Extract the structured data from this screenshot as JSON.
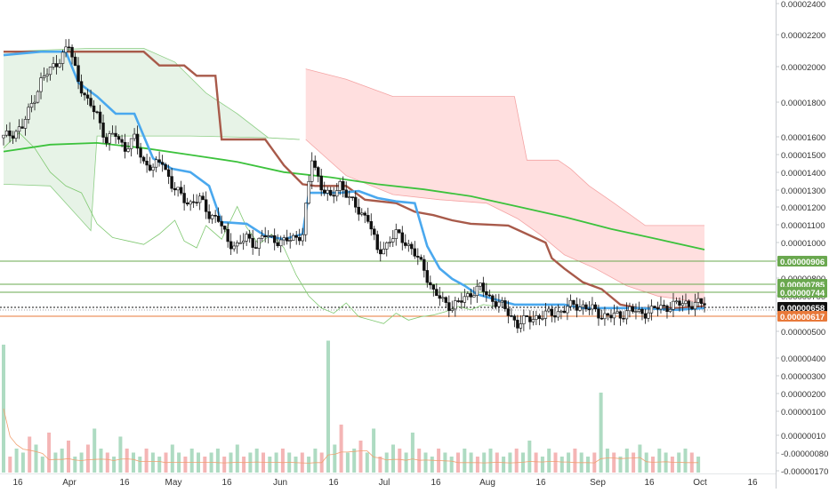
{
  "chart_data": {
    "type": "candlestick",
    "title": "",
    "x_ticks": [
      "16",
      "Apr",
      "16",
      "May",
      "16",
      "Jun",
      "16",
      "Jul",
      "16",
      "Aug",
      "16",
      "Sep",
      "16",
      "Oct",
      "16"
    ],
    "y_ticks": [
      "0.00002400",
      "0.00002200",
      "0.00002000",
      "0.00001800",
      "0.00001600",
      "0.00001500",
      "0.00001400",
      "0.00001300",
      "0.00001200",
      "0.00001100",
      "0.00001000",
      "0.00000900",
      "0.00000800",
      "0.00000700",
      "0.00000600",
      "0.00000500",
      "0.00000400",
      "0.00000300",
      "0.00000200",
      "0.00000100",
      "0.00000010",
      "-0.00000080",
      "-0.00000170"
    ],
    "price_levels": [
      {
        "label": "0.00000906",
        "color": "#6aa84f"
      },
      {
        "label": "0.00000785",
        "color": "#6aa84f"
      },
      {
        "label": "0.00000744",
        "color": "#6aa84f"
      },
      {
        "label": "0.00000658",
        "color": "#111111"
      },
      {
        "label": "0.00000617",
        "color": "#e8793a"
      }
    ],
    "price_series": [
      {
        "x": 0,
        "y": 16.2
      },
      {
        "x": 6,
        "y": 16.8
      },
      {
        "x": 12,
        "y": 19.5
      },
      {
        "x": 18,
        "y": 20.8
      },
      {
        "x": 21,
        "y": 21.5
      },
      {
        "x": 24,
        "y": 19.6
      },
      {
        "x": 27,
        "y": 18.2
      },
      {
        "x": 30,
        "y": 17.6
      },
      {
        "x": 33,
        "y": 16.0
      },
      {
        "x": 36,
        "y": 16.4
      },
      {
        "x": 39,
        "y": 15.6
      },
      {
        "x": 42,
        "y": 16.1
      },
      {
        "x": 45,
        "y": 14.8
      },
      {
        "x": 48,
        "y": 14.4
      },
      {
        "x": 51,
        "y": 14.9
      },
      {
        "x": 54,
        "y": 13.4
      },
      {
        "x": 57,
        "y": 12.8
      },
      {
        "x": 60,
        "y": 12.4
      },
      {
        "x": 63,
        "y": 12.6
      },
      {
        "x": 66,
        "y": 11.8
      },
      {
        "x": 69,
        "y": 11.4
      },
      {
        "x": 72,
        "y": 10.2
      },
      {
        "x": 75,
        "y": 9.9
      },
      {
        "x": 78,
        "y": 10.4
      },
      {
        "x": 81,
        "y": 10.0
      },
      {
        "x": 84,
        "y": 10.5
      },
      {
        "x": 87,
        "y": 10.3
      },
      {
        "x": 90,
        "y": 10.1
      },
      {
        "x": 93,
        "y": 10.4
      },
      {
        "x": 96,
        "y": 10.6
      },
      {
        "x": 99,
        "y": 15.0
      },
      {
        "x": 102,
        "y": 13.4
      },
      {
        "x": 105,
        "y": 12.6
      },
      {
        "x": 108,
        "y": 13.6
      },
      {
        "x": 111,
        "y": 12.6
      },
      {
        "x": 114,
        "y": 12.0
      },
      {
        "x": 117,
        "y": 11.5
      },
      {
        "x": 120,
        "y": 9.6
      },
      {
        "x": 123,
        "y": 10.0
      },
      {
        "x": 126,
        "y": 10.6
      },
      {
        "x": 129,
        "y": 10.2
      },
      {
        "x": 132,
        "y": 9.4
      },
      {
        "x": 135,
        "y": 8.6
      },
      {
        "x": 138,
        "y": 7.2
      },
      {
        "x": 141,
        "y": 6.7
      },
      {
        "x": 144,
        "y": 6.4
      },
      {
        "x": 147,
        "y": 6.7
      },
      {
        "x": 150,
        "y": 7.2
      },
      {
        "x": 153,
        "y": 7.5
      },
      {
        "x": 156,
        "y": 6.9
      },
      {
        "x": 159,
        "y": 6.6
      },
      {
        "x": 162,
        "y": 6.0
      },
      {
        "x": 165,
        "y": 5.4
      },
      {
        "x": 168,
        "y": 5.6
      },
      {
        "x": 171,
        "y": 5.8
      },
      {
        "x": 174,
        "y": 5.9
      },
      {
        "x": 177,
        "y": 6.0
      },
      {
        "x": 180,
        "y": 6.2
      },
      {
        "x": 183,
        "y": 6.5
      },
      {
        "x": 186,
        "y": 6.4
      },
      {
        "x": 189,
        "y": 6.2
      },
      {
        "x": 192,
        "y": 5.9
      },
      {
        "x": 195,
        "y": 5.8
      },
      {
        "x": 198,
        "y": 5.9
      },
      {
        "x": 201,
        "y": 6.2
      },
      {
        "x": 204,
        "y": 6.0
      },
      {
        "x": 207,
        "y": 6.1
      },
      {
        "x": 210,
        "y": 6.3
      },
      {
        "x": 213,
        "y": 6.4
      },
      {
        "x": 216,
        "y": 6.5
      },
      {
        "x": 219,
        "y": 6.6
      },
      {
        "x": 222,
        "y": 6.5
      },
      {
        "x": 225,
        "y": 6.6
      }
    ],
    "blue_line": [
      {
        "x": 0,
        "y": 21.0
      },
      {
        "x": 12,
        "y": 21.2
      },
      {
        "x": 20,
        "y": 21.2
      },
      {
        "x": 24,
        "y": 19.4
      },
      {
        "x": 30,
        "y": 18.6
      },
      {
        "x": 36,
        "y": 17.6
      },
      {
        "x": 42,
        "y": 17.6
      },
      {
        "x": 48,
        "y": 15.0
      },
      {
        "x": 54,
        "y": 14.4
      },
      {
        "x": 60,
        "y": 14.2
      },
      {
        "x": 66,
        "y": 13.4
      },
      {
        "x": 70,
        "y": 11.3
      },
      {
        "x": 78,
        "y": 11.2
      },
      {
        "x": 84,
        "y": 10.5
      },
      {
        "x": 90,
        "y": 10.3
      },
      {
        "x": 96,
        "y": 10.6
      },
      {
        "x": 98,
        "y": 13.0
      },
      {
        "x": 108,
        "y": 13.0
      },
      {
        "x": 114,
        "y": 13.1
      },
      {
        "x": 120,
        "y": 12.7
      },
      {
        "x": 126,
        "y": 12.5
      },
      {
        "x": 132,
        "y": 12.4
      },
      {
        "x": 136,
        "y": 9.9
      },
      {
        "x": 140,
        "y": 8.6
      },
      {
        "x": 144,
        "y": 8.0
      },
      {
        "x": 148,
        "y": 7.6
      },
      {
        "x": 152,
        "y": 7.1
      },
      {
        "x": 156,
        "y": 6.9
      },
      {
        "x": 160,
        "y": 6.7
      },
      {
        "x": 164,
        "y": 6.5
      },
      {
        "x": 172,
        "y": 6.5
      },
      {
        "x": 180,
        "y": 6.5
      },
      {
        "x": 186,
        "y": 6.3
      },
      {
        "x": 192,
        "y": 6.3
      },
      {
        "x": 204,
        "y": 6.3
      },
      {
        "x": 216,
        "y": 6.2
      },
      {
        "x": 225,
        "y": 6.3
      }
    ],
    "brown_line": [
      {
        "x": 0,
        "y": 21.2
      },
      {
        "x": 45,
        "y": 21.2
      },
      {
        "x": 50,
        "y": 20.4
      },
      {
        "x": 58,
        "y": 20.4
      },
      {
        "x": 62,
        "y": 19.8
      },
      {
        "x": 68,
        "y": 19.8
      },
      {
        "x": 70,
        "y": 16.1
      },
      {
        "x": 84,
        "y": 16.1
      },
      {
        "x": 86,
        "y": 15.6
      },
      {
        "x": 90,
        "y": 14.6
      },
      {
        "x": 96,
        "y": 13.5
      },
      {
        "x": 100,
        "y": 13.4
      },
      {
        "x": 110,
        "y": 13.4
      },
      {
        "x": 116,
        "y": 12.6
      },
      {
        "x": 126,
        "y": 12.4
      },
      {
        "x": 132,
        "y": 11.9
      },
      {
        "x": 138,
        "y": 11.7
      },
      {
        "x": 144,
        "y": 11.4
      },
      {
        "x": 150,
        "y": 11.2
      },
      {
        "x": 162,
        "y": 11.1
      },
      {
        "x": 168,
        "y": 10.6
      },
      {
        "x": 174,
        "y": 10.1
      },
      {
        "x": 176,
        "y": 9.2
      },
      {
        "x": 180,
        "y": 8.6
      },
      {
        "x": 186,
        "y": 7.8
      },
      {
        "x": 192,
        "y": 7.4
      },
      {
        "x": 198,
        "y": 6.5
      },
      {
        "x": 204,
        "y": 6.3
      },
      {
        "x": 216,
        "y": 6.3
      },
      {
        "x": 225,
        "y": 6.4
      }
    ],
    "ma_line": [
      {
        "x": 0,
        "y": 15.4
      },
      {
        "x": 15,
        "y": 15.8
      },
      {
        "x": 30,
        "y": 15.9
      },
      {
        "x": 45,
        "y": 15.6
      },
      {
        "x": 60,
        "y": 15.2
      },
      {
        "x": 75,
        "y": 14.8
      },
      {
        "x": 90,
        "y": 14.2
      },
      {
        "x": 105,
        "y": 13.9
      },
      {
        "x": 120,
        "y": 13.5
      },
      {
        "x": 135,
        "y": 13.2
      },
      {
        "x": 150,
        "y": 12.8
      },
      {
        "x": 165,
        "y": 12.2
      },
      {
        "x": 180,
        "y": 11.6
      },
      {
        "x": 195,
        "y": 10.9
      },
      {
        "x": 210,
        "y": 10.3
      },
      {
        "x": 225,
        "y": 9.7
      }
    ],
    "cloud_green_top": [
      {
        "x": 0,
        "y": 21.2
      },
      {
        "x": 28,
        "y": 21.4
      },
      {
        "x": 45,
        "y": 21.4
      },
      {
        "x": 55,
        "y": 20.6
      },
      {
        "x": 65,
        "y": 18.8
      },
      {
        "x": 75,
        "y": 17.6
      },
      {
        "x": 85,
        "y": 16.2
      },
      {
        "x": 95,
        "y": 16.1
      }
    ],
    "cloud_green_bottom": [
      {
        "x": 0,
        "y": 13.5
      },
      {
        "x": 15,
        "y": 13.4
      },
      {
        "x": 25,
        "y": 11.4
      },
      {
        "x": 28,
        "y": 10.8
      },
      {
        "x": 30,
        "y": 16.3
      },
      {
        "x": 60,
        "y": 16.3
      },
      {
        "x": 85,
        "y": 16.2
      },
      {
        "x": 95,
        "y": 16.1
      }
    ],
    "cloud_red_top": [
      {
        "x": 97,
        "y": 20.2
      },
      {
        "x": 110,
        "y": 19.6
      },
      {
        "x": 125,
        "y": 18.6
      },
      {
        "x": 150,
        "y": 18.6
      },
      {
        "x": 164,
        "y": 18.6
      },
      {
        "x": 168,
        "y": 14.9
      },
      {
        "x": 178,
        "y": 14.9
      },
      {
        "x": 182,
        "y": 14.4
      },
      {
        "x": 188,
        "y": 13.4
      },
      {
        "x": 196,
        "y": 12.4
      },
      {
        "x": 206,
        "y": 11.1
      },
      {
        "x": 225,
        "y": 11.1
      }
    ],
    "cloud_red_bottom": [
      {
        "x": 97,
        "y": 16.1
      },
      {
        "x": 110,
        "y": 14.0
      },
      {
        "x": 125,
        "y": 12.9
      },
      {
        "x": 140,
        "y": 12.6
      },
      {
        "x": 155,
        "y": 12.4
      },
      {
        "x": 165,
        "y": 11.5
      },
      {
        "x": 172,
        "y": 10.6
      },
      {
        "x": 180,
        "y": 9.4
      },
      {
        "x": 190,
        "y": 8.6
      },
      {
        "x": 200,
        "y": 7.6
      },
      {
        "x": 210,
        "y": 7.0
      },
      {
        "x": 225,
        "y": 6.6
      }
    ],
    "lagging_line": [
      {
        "x": 0,
        "y": 15.6
      },
      {
        "x": 5,
        "y": 16.5
      },
      {
        "x": 10,
        "y": 15.6
      },
      {
        "x": 15,
        "y": 14.2
      },
      {
        "x": 20,
        "y": 13.4
      },
      {
        "x": 25,
        "y": 13.0
      },
      {
        "x": 30,
        "y": 11.2
      },
      {
        "x": 35,
        "y": 10.4
      },
      {
        "x": 40,
        "y": 10.2
      },
      {
        "x": 45,
        "y": 10.0
      },
      {
        "x": 50,
        "y": 10.6
      },
      {
        "x": 55,
        "y": 11.4
      },
      {
        "x": 58,
        "y": 10.2
      },
      {
        "x": 62,
        "y": 9.8
      },
      {
        "x": 65,
        "y": 11.1
      },
      {
        "x": 70,
        "y": 10.3
      },
      {
        "x": 75,
        "y": 12.2
      },
      {
        "x": 78,
        "y": 11.0
      },
      {
        "x": 82,
        "y": 10.0
      },
      {
        "x": 86,
        "y": 10.6
      },
      {
        "x": 90,
        "y": 9.8
      },
      {
        "x": 94,
        "y": 8.2
      },
      {
        "x": 98,
        "y": 7.0
      },
      {
        "x": 102,
        "y": 6.3
      },
      {
        "x": 106,
        "y": 6.0
      },
      {
        "x": 110,
        "y": 6.6
      },
      {
        "x": 114,
        "y": 5.8
      },
      {
        "x": 118,
        "y": 5.6
      },
      {
        "x": 122,
        "y": 5.4
      },
      {
        "x": 126,
        "y": 6.0
      },
      {
        "x": 130,
        "y": 5.6
      },
      {
        "x": 134,
        "y": 5.8
      },
      {
        "x": 138,
        "y": 5.9
      },
      {
        "x": 142,
        "y": 6.1
      },
      {
        "x": 146,
        "y": 6.4
      },
      {
        "x": 150,
        "y": 6.2
      },
      {
        "x": 154,
        "y": 6.5
      },
      {
        "x": 158,
        "y": 6.4
      }
    ],
    "volume": [
      3.2,
      0.4,
      0.6,
      0.5,
      0.9,
      0.7,
      0.4,
      1.0,
      0.5,
      0.6,
      0.8,
      0.4,
      0.5,
      0.7,
      1.1,
      0.6,
      0.5,
      0.4,
      0.9,
      0.6,
      0.5,
      0.4,
      0.6,
      0.5,
      0.4,
      0.5,
      0.7,
      0.5,
      0.4,
      0.6,
      0.5,
      0.4,
      0.5,
      0.6,
      0.4,
      0.5,
      0.7,
      0.4,
      0.5,
      0.6,
      0.5,
      0.4,
      0.5,
      0.6,
      0.5,
      0.4,
      0.5,
      0.4,
      0.6,
      0.5,
      3.3,
      0.7,
      1.2,
      0.5,
      0.6,
      0.8,
      0.5,
      1.1,
      0.4,
      0.5,
      0.7,
      0.6,
      0.5,
      1.0,
      0.6,
      0.5,
      0.4,
      0.6,
      0.5,
      0.4,
      0.5,
      0.6,
      0.5,
      0.4,
      0.5,
      0.6,
      0.5,
      0.4,
      0.5,
      0.6,
      0.5,
      0.8,
      0.5,
      0.4,
      0.6,
      0.5,
      0.4,
      0.5,
      0.6,
      0.5,
      0.4,
      0.5,
      2.0,
      0.6,
      0.5,
      0.4,
      0.6,
      0.5,
      0.7,
      0.5,
      0.4,
      0.6,
      0.5,
      0.4,
      0.5,
      0.6,
      0.5,
      0.4
    ]
  }
}
